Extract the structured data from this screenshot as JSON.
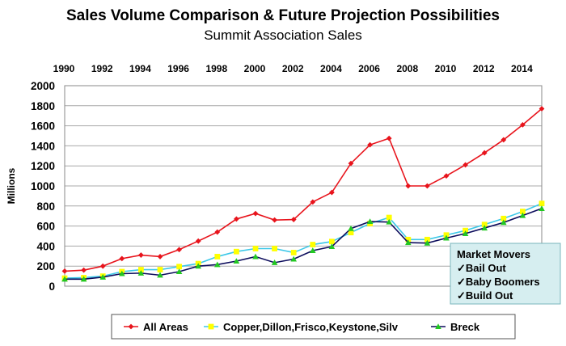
{
  "chart_data": {
    "type": "line",
    "title": "Sales Volume Comparison & Future Projection Possibilities",
    "subtitle": "Summit Association Sales",
    "ylabel": "Millions",
    "xlabel": "",
    "x": [
      1990,
      1991,
      1992,
      1993,
      1994,
      1995,
      1996,
      1997,
      1998,
      1999,
      2000,
      2001,
      2002,
      2003,
      2004,
      2005,
      2006,
      2007,
      2008,
      2009,
      2010,
      2011,
      2012,
      2013,
      2014,
      2015
    ],
    "xtick_labels": [
      "1990",
      "1992",
      "1994",
      "1996",
      "1998",
      "2000",
      "2002",
      "2004",
      "2006",
      "2008",
      "2010",
      "2012",
      "2014"
    ],
    "ylim": [
      0,
      2000
    ],
    "ytick_labels": [
      "0",
      "200",
      "400",
      "600",
      "800",
      "1000",
      "1200",
      "1400",
      "1600",
      "1800",
      "2000"
    ],
    "grid": true,
    "legend_position": "bottom",
    "series": [
      {
        "name": "All Areas",
        "color": "#e8141c",
        "marker": "diamond",
        "values": [
          150,
          160,
          200,
          275,
          310,
          295,
          365,
          450,
          540,
          670,
          725,
          660,
          665,
          840,
          935,
          1225,
          1410,
          1475,
          1000,
          1000,
          1100,
          1210,
          1330,
          1460,
          1610,
          1770
        ]
      },
      {
        "name": "Copper,Dillon,Frisco,Keystone,Silv",
        "color": "#3cc8e8",
        "marker": "square",
        "marker_color": "#ffff00",
        "values": [
          80,
          85,
          100,
          145,
          165,
          165,
          195,
          225,
          295,
          345,
          375,
          375,
          335,
          415,
          445,
          535,
          625,
          685,
          465,
          465,
          510,
          555,
          615,
          675,
          745,
          825
        ]
      },
      {
        "name": "Breck",
        "color": "#0c0c5c",
        "marker": "triangle",
        "marker_color": "#22c822",
        "values": [
          70,
          70,
          90,
          125,
          130,
          110,
          145,
          200,
          215,
          250,
          295,
          235,
          270,
          355,
          395,
          575,
          645,
          640,
          435,
          430,
          480,
          525,
          580,
          635,
          705,
          775
        ]
      }
    ],
    "annotation": {
      "title": "Market Movers",
      "items": [
        "✓Bail Out",
        "✓Baby Boomers",
        "✓Build Out"
      ],
      "background": "#d6eef0",
      "border": "#7ab6bc"
    }
  }
}
